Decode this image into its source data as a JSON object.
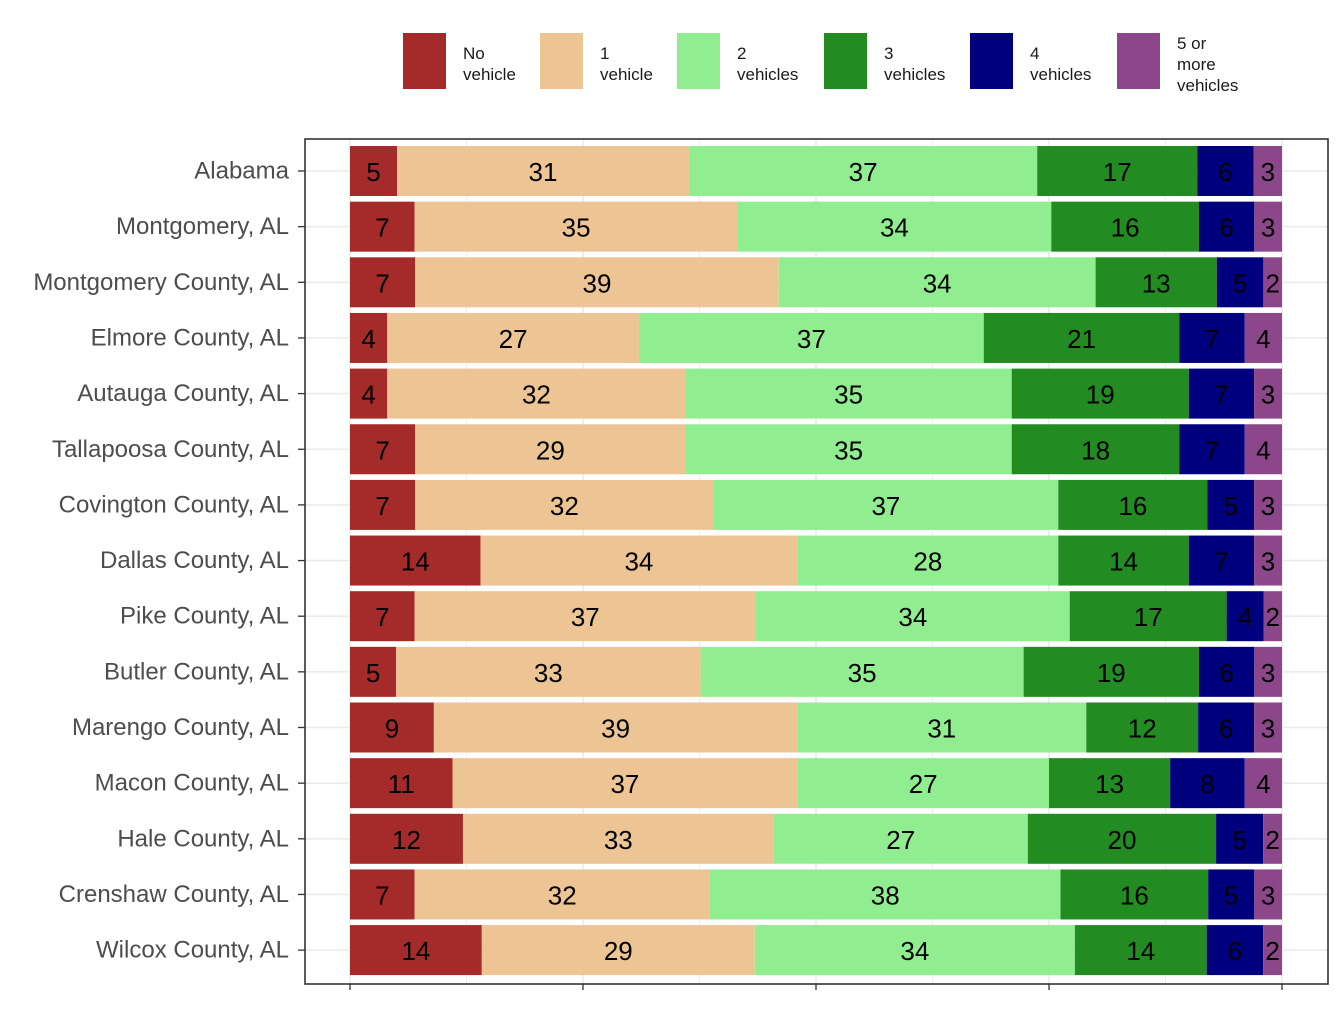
{
  "chart_data": {
    "type": "bar",
    "orientation": "horizontal",
    "stacked": true,
    "percent_stacked": true,
    "title": "",
    "xlabel": "",
    "ylabel": "",
    "xlim": [
      0,
      100
    ],
    "grid": true,
    "legend_position": "top",
    "categories": [
      "Alabama",
      "Montgomery, AL",
      "Montgomery County, AL",
      "Elmore County, AL",
      "Autauga County, AL",
      "Tallapoosa County, AL",
      "Covington County, AL",
      "Dallas County, AL",
      "Pike County, AL",
      "Butler County, AL",
      "Marengo County, AL",
      "Macon County, AL",
      "Hale County, AL",
      "Crenshaw County, AL",
      "Wilcox County, AL"
    ],
    "series": [
      {
        "name": "No\nvehicle",
        "color": "#a52a2a",
        "values": [
          5,
          7,
          7,
          4,
          4,
          7,
          7,
          14,
          7,
          5,
          9,
          11,
          12,
          7,
          14
        ]
      },
      {
        "name": "1\nvehicle",
        "color": "#edc594",
        "values": [
          31,
          35,
          39,
          27,
          32,
          29,
          32,
          34,
          37,
          33,
          39,
          37,
          33,
          32,
          29
        ]
      },
      {
        "name": "2\nvehicles",
        "color": "#90ee90",
        "values": [
          37,
          34,
          34,
          37,
          35,
          35,
          37,
          28,
          34,
          35,
          31,
          27,
          27,
          38,
          34
        ]
      },
      {
        "name": "3\nvehicles",
        "color": "#228b22",
        "values": [
          17,
          16,
          13,
          21,
          19,
          18,
          16,
          14,
          17,
          19,
          12,
          13,
          20,
          16,
          14
        ]
      },
      {
        "name": "4\nvehicles",
        "color": "#00007f",
        "values": [
          6,
          6,
          5,
          7,
          7,
          7,
          5,
          7,
          4,
          6,
          6,
          8,
          5,
          5,
          6
        ]
      },
      {
        "name": "5 or\nmore\nvehicles",
        "color": "#8b4789",
        "values": [
          3,
          3,
          2,
          4,
          3,
          4,
          3,
          3,
          2,
          3,
          3,
          4,
          2,
          3,
          2
        ]
      }
    ]
  }
}
